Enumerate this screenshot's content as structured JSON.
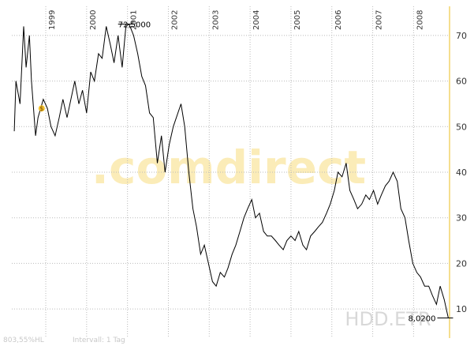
{
  "chart_data": {
    "type": "line",
    "x": [
      1998.23,
      1998.27,
      1998.37,
      1998.46,
      1998.52,
      1998.6,
      1998.65,
      1998.75,
      1998.81,
      1998.94,
      1999.04,
      1999.13,
      1999.23,
      1999.33,
      1999.42,
      1999.52,
      1999.71,
      1999.81,
      1999.9,
      2000.0,
      2000.1,
      2000.19,
      2000.29,
      2000.38,
      2000.48,
      2000.58,
      2000.67,
      2000.77,
      2000.87,
      2000.96,
      2001.04,
      2001.15,
      2001.25,
      2001.35,
      2001.44,
      2001.54,
      2001.63,
      2001.73,
      2001.83,
      2001.92,
      2002.02,
      2002.12,
      2002.31,
      2002.4,
      2002.5,
      2002.6,
      2002.69,
      2002.79,
      2002.88,
      2002.98,
      2003.08,
      2003.17,
      2003.27,
      2003.37,
      2003.46,
      2003.56,
      2003.65,
      2003.75,
      2003.85,
      2003.94,
      2004.04,
      2004.13,
      2004.23,
      2004.33,
      2004.42,
      2004.52,
      2004.62,
      2004.71,
      2004.81,
      2004.9,
      2005.0,
      2005.1,
      2005.19,
      2005.29,
      2005.38,
      2005.48,
      2005.58,
      2005.67,
      2005.77,
      2005.87,
      2005.96,
      2006.06,
      2006.15,
      2006.25,
      2006.35,
      2006.44,
      2006.54,
      2006.63,
      2006.73,
      2006.83,
      2006.92,
      2007.02,
      2007.12,
      2007.21,
      2007.31,
      2007.4,
      2007.5,
      2007.6,
      2007.69,
      2007.79,
      2007.88,
      2007.98,
      2008.08,
      2008.17,
      2008.27,
      2008.37,
      2008.46,
      2008.56,
      2008.65,
      2008.75,
      2008.85
    ],
    "values": [
      49,
      60,
      55,
      72,
      63,
      70,
      60,
      48,
      52,
      56,
      54,
      50,
      48,
      52,
      56,
      52,
      60,
      55,
      58,
      53,
      62,
      60,
      66,
      65,
      72,
      68,
      64,
      70,
      63,
      72,
      72.5,
      70,
      66,
      61,
      59,
      53,
      52,
      42,
      48,
      40,
      46,
      50,
      55,
      50,
      40,
      32,
      28,
      22,
      24,
      20,
      16,
      15,
      18,
      17,
      19,
      22,
      24,
      27,
      30,
      32,
      34,
      30,
      31,
      27,
      26,
      26,
      25,
      24,
      23,
      25,
      26,
      25,
      27,
      24,
      23,
      26,
      27,
      28,
      29,
      31,
      33,
      36,
      40,
      39,
      42,
      36,
      34,
      32,
      33,
      35,
      34,
      36,
      33,
      35,
      37,
      38,
      40,
      38,
      32,
      30,
      25,
      20,
      18,
      17,
      15,
      15,
      13,
      11,
      15,
      12,
      8.02
    ],
    "color": "#000000",
    "xlim": [
      1998.17,
      2008.88
    ],
    "ylim": [
      3.6,
      76.4
    ],
    "xticks": [
      1999,
      2000,
      2001,
      2002,
      2003,
      2004,
      2005,
      2006,
      2007,
      2008
    ],
    "yticks": [
      10,
      20,
      30,
      40,
      50,
      60,
      70
    ],
    "grid": true,
    "annotations": [
      {
        "text": "72,5000",
        "x": 2001.04,
        "y": 72.5
      },
      {
        "text": "8,0200",
        "x": 2008.85,
        "y": 8.02
      }
    ],
    "markers": [
      {
        "label": "$",
        "x": 1998.9,
        "y": 54
      }
    ],
    "watermark": ".comdirect",
    "symbol": "HDD.ETR",
    "footer": [
      "803,55%HL",
      "Intervall: 1 Tag"
    ]
  }
}
